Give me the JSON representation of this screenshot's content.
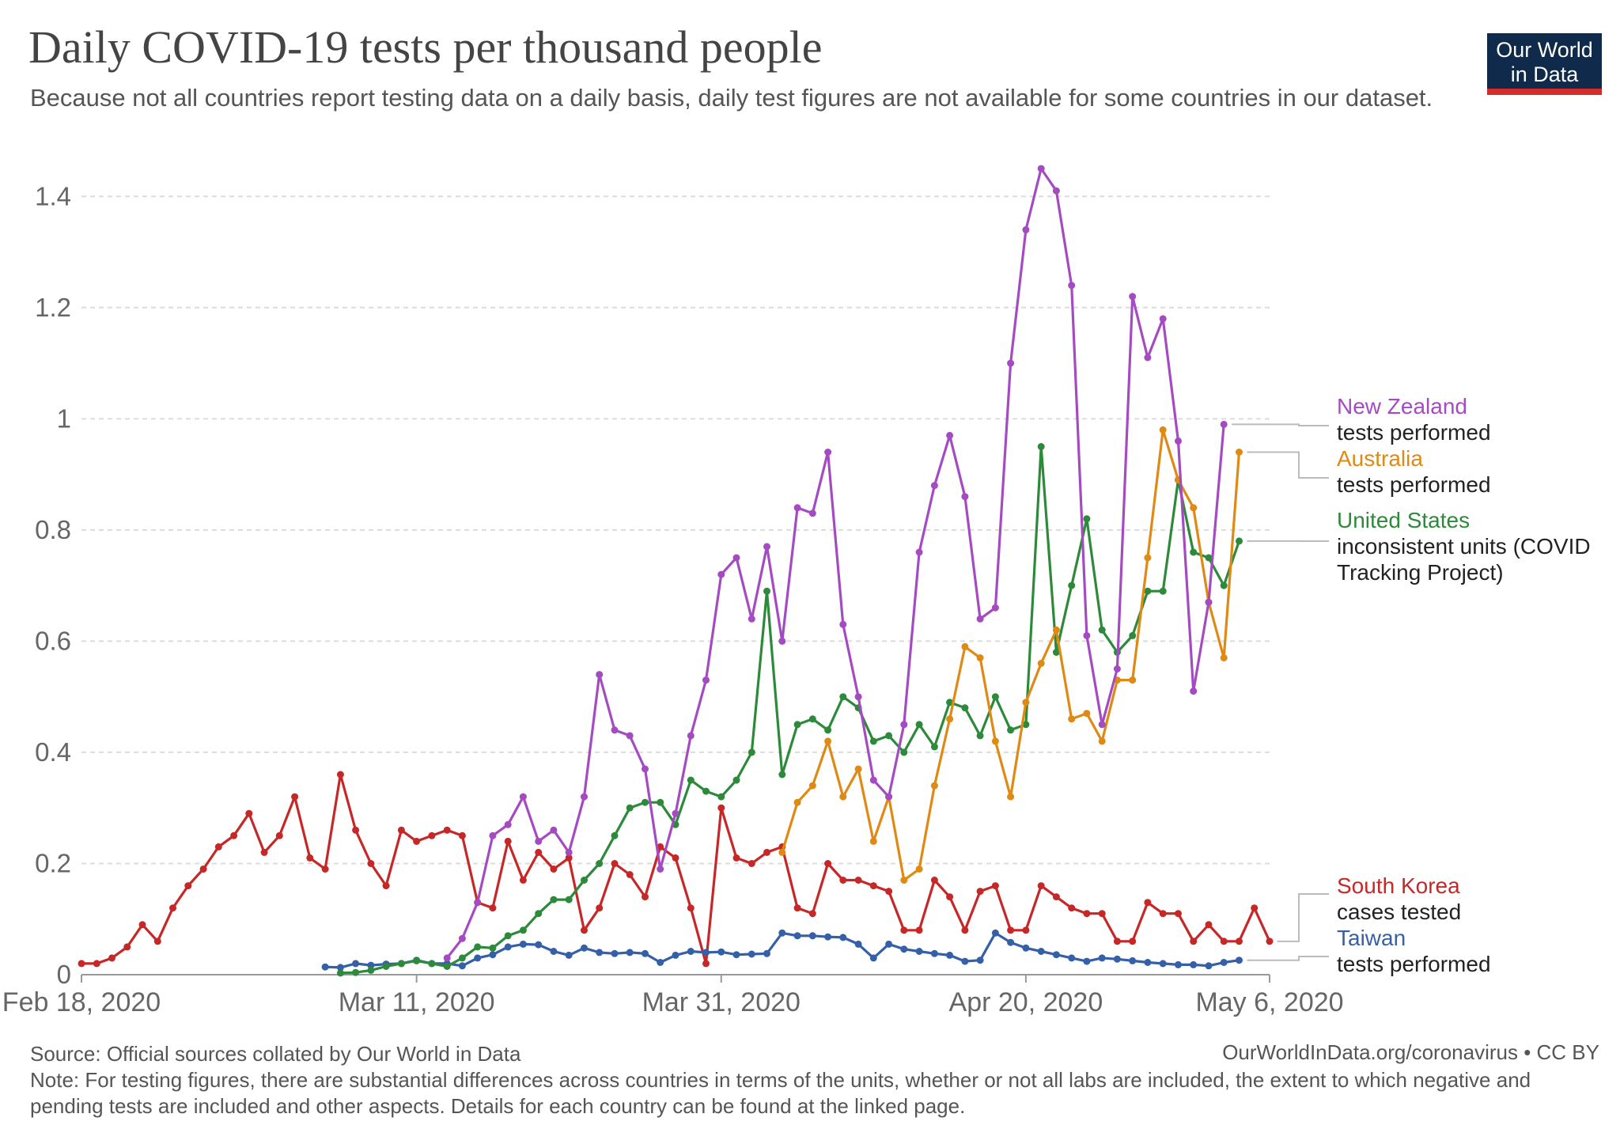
{
  "title": "Daily COVID-19 tests per thousand people",
  "subtitle": "Because not all countries report testing data on a daily basis, daily test figures are not available for some countries in our dataset.",
  "logo": {
    "line1": "Our World",
    "line2": "in Data"
  },
  "footer": {
    "source": "Source: Official sources collated by Our World in Data",
    "link": "OurWorldInData.org/coronavirus • CC BY",
    "note": "Note: For testing figures, there are substantial differences across countries in terms of the units, whether or not all labs are included, the extent to which negative and pending tests are included and other aspects. Details for each country can be found at the linked page."
  },
  "labels": {
    "nz": {
      "name": "New Zealand",
      "desc": "tests performed"
    },
    "au": {
      "name": "Australia",
      "desc": "tests performed"
    },
    "us": {
      "name": "United States",
      "desc1": "inconsistent units (COVID",
      "desc2": "Tracking Project)"
    },
    "kr": {
      "name": "South Korea",
      "desc": "cases tested"
    },
    "tw": {
      "name": "Taiwan",
      "desc": "tests performed"
    }
  },
  "chart_data": {
    "type": "line",
    "x_unit": "date",
    "x_start": "2020-02-18",
    "x_end": "2020-05-06",
    "x_ticks": [
      "Feb 18, 2020",
      "Mar 11, 2020",
      "Mar 31, 2020",
      "Apr 20, 2020",
      "May 6, 2020"
    ],
    "x_tick_dates": [
      "2020-02-18",
      "2020-03-11",
      "2020-03-31",
      "2020-04-20",
      "2020-05-06"
    ],
    "y_ticks": [
      "0",
      "0.2",
      "0.4",
      "0.6",
      "0.8",
      "1",
      "1.2",
      "1.4"
    ],
    "ylim": [
      0,
      1.5
    ],
    "grid": "horizontal dashed",
    "series": [
      {
        "name": "South Korea",
        "color": "#c62828",
        "start": "2020-02-18",
        "values": [
          0.02,
          0.02,
          0.03,
          0.05,
          0.09,
          0.06,
          0.12,
          0.16,
          0.19,
          0.23,
          0.25,
          0.29,
          0.22,
          0.25,
          0.32,
          0.21,
          0.19,
          0.36,
          0.26,
          0.2,
          0.16,
          0.26,
          0.24,
          0.25,
          0.26,
          0.25,
          0.13,
          0.12,
          0.24,
          0.17,
          0.22,
          0.19,
          0.21,
          0.08,
          0.12,
          0.2,
          0.18,
          0.14,
          0.23,
          0.21,
          0.12,
          0.02,
          0.3,
          0.21,
          0.2,
          0.22,
          0.23,
          0.12,
          0.11,
          0.2,
          0.17,
          0.17,
          0.16,
          0.15,
          0.08,
          0.08,
          0.17,
          0.14,
          0.08,
          0.15,
          0.16,
          0.08,
          0.08,
          0.16,
          0.14,
          0.12,
          0.11,
          0.11,
          0.06,
          0.06,
          0.13,
          0.11,
          0.11,
          0.06,
          0.09,
          0.06,
          0.06,
          0.12,
          0.06
        ]
      },
      {
        "name": "Taiwan",
        "color": "#3560a8",
        "start": "2020-03-05",
        "values": [
          0.014,
          0.013,
          0.02,
          0.017,
          0.019,
          0.02,
          0.026,
          0.02,
          0.02,
          0.016,
          0.03,
          0.036,
          0.05,
          0.055,
          0.054,
          0.042,
          0.035,
          0.048,
          0.04,
          0.038,
          0.04,
          0.038,
          0.022,
          0.035,
          0.042,
          0.04,
          0.041,
          0.036,
          0.037,
          0.038,
          0.075,
          0.07,
          0.07,
          0.068,
          0.067,
          0.055,
          0.03,
          0.055,
          0.046,
          0.042,
          0.038,
          0.035,
          0.024,
          0.026,
          0.075,
          0.058,
          0.048,
          0.042,
          0.036,
          0.03,
          0.024,
          0.03,
          0.028,
          0.025,
          0.022,
          0.02,
          0.018,
          0.018,
          0.016,
          0.022,
          0.026
        ]
      },
      {
        "name": "United States",
        "color": "#2d8a3a",
        "start": "2020-03-06",
        "values": [
          0.003,
          0.004,
          0.008,
          0.015,
          0.02,
          0.025,
          0.02,
          0.015,
          0.03,
          0.05,
          0.048,
          0.07,
          0.08,
          0.11,
          0.135,
          0.135,
          0.17,
          0.2,
          0.25,
          0.3,
          0.31,
          0.31,
          0.27,
          0.35,
          0.33,
          0.32,
          0.35,
          0.4,
          0.69,
          0.36,
          0.45,
          0.46,
          0.44,
          0.5,
          0.48,
          0.42,
          0.43,
          0.4,
          0.45,
          0.41,
          0.49,
          0.48,
          0.43,
          0.5,
          0.44,
          0.45,
          0.95,
          0.58,
          0.7,
          0.82,
          0.62,
          0.58,
          0.61,
          0.69,
          0.69,
          0.89,
          0.76,
          0.75,
          0.7,
          0.78
        ]
      },
      {
        "name": "Australia",
        "color": "#de8a14",
        "start": "2020-04-04",
        "values": [
          0.22,
          0.31,
          0.34,
          0.42,
          0.32,
          0.37,
          0.24,
          0.32,
          0.17,
          0.19,
          0.34,
          0.46,
          0.59,
          0.57,
          0.42,
          0.32,
          0.49,
          0.56,
          0.62,
          0.46,
          0.47,
          0.42,
          0.53,
          0.53,
          0.75,
          0.98,
          0.89,
          0.84,
          0.67,
          0.57,
          0.94
        ]
      },
      {
        "name": "New Zealand",
        "color": "#a54bc2",
        "start": "2020-03-13",
        "values": [
          0.03,
          0.065,
          0.13,
          0.25,
          0.27,
          0.32,
          0.24,
          0.26,
          0.22,
          0.32,
          0.54,
          0.44,
          0.43,
          0.37,
          0.19,
          0.29,
          0.43,
          0.53,
          0.72,
          0.75,
          0.64,
          0.77,
          0.6,
          0.84,
          0.83,
          0.94,
          0.63,
          0.5,
          0.35,
          0.32,
          0.45,
          0.76,
          0.88,
          0.97,
          0.86,
          0.64,
          0.66,
          1.1,
          1.34,
          1.45,
          1.41,
          1.24,
          0.61,
          0.45,
          0.55,
          1.22,
          1.11,
          1.18,
          0.96,
          0.51,
          0.67,
          0.99
        ]
      }
    ]
  }
}
